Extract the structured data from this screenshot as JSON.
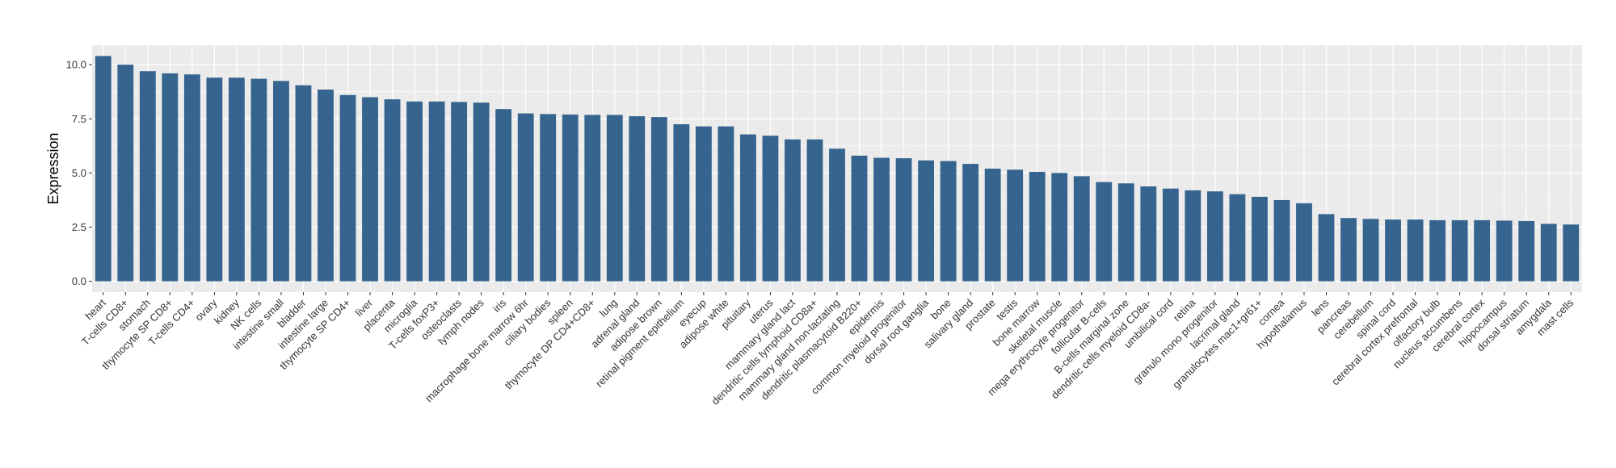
{
  "chart_data": {
    "type": "bar",
    "title": "",
    "xlabel": "",
    "ylabel": "Expression",
    "ylim": [
      -0.5,
      10.9
    ],
    "yticks": [
      0.0,
      2.5,
      5.0,
      7.5,
      10.0
    ],
    "ytick_labels": [
      "0.0",
      "2.5",
      "5.0",
      "7.5",
      "10.0"
    ],
    "grid": true,
    "legend": "none",
    "bar_color": "#35648e",
    "panel_color": "#ebebeb",
    "categories": [
      "heart",
      "T-cells CD8+",
      "stomach",
      "thymocyte SP CD8+",
      "T-cells CD4+",
      "ovary",
      "kidney",
      "NK cells",
      "intestine small",
      "bladder",
      "intestine large",
      "thymocyte SP CD4+",
      "liver",
      "placenta",
      "microglia",
      "T-cells foxP3+",
      "osteoclasts",
      "lymph nodes",
      "iris",
      "macrophage bone marrow 6hr",
      "ciliary bodies",
      "spleen",
      "thymocyte DP CD4+CD8+",
      "lung",
      "adrenal gland",
      "adipose brown",
      "retinal pigment epithelium",
      "eyecup",
      "adipose white",
      "pituitary",
      "uterus",
      "mammary gland lact",
      "dendritic cells lymphoid CD8a+",
      "mammary gland non-lactating",
      "dendritic plasmacytoid B220+",
      "epidermis",
      "common myeloid progenitor",
      "dorsal root ganglia",
      "bone",
      "salivary gland",
      "prostate",
      "testis",
      "bone marrow",
      "skeletal muscle",
      "mega erythrocyte progenitor",
      "follicular B-cells",
      "B-cells marginal zone",
      "dendritic cells myeloid CD8a-",
      "umbilical cord",
      "retina",
      "granulo mono progenitor",
      "lacrimal gland",
      "granulocytes mac1+gr61+",
      "cornea",
      "hypothalamus",
      "lens",
      "pancreas",
      "cerebellum",
      "spinal cord",
      "cerebral cortex prefrontal",
      "olfactory bulb",
      "nucleus accumbens",
      "cerebral cortex",
      "hippocampus",
      "dorsal striatum",
      "amygdala",
      "mast cells"
    ],
    "values": [
      10.4,
      10.0,
      9.7,
      9.6,
      9.55,
      9.4,
      9.4,
      9.35,
      9.25,
      9.05,
      8.85,
      8.6,
      8.5,
      8.4,
      8.3,
      8.3,
      8.28,
      8.25,
      7.95,
      7.75,
      7.72,
      7.7,
      7.68,
      7.68,
      7.62,
      7.58,
      7.25,
      7.15,
      7.15,
      6.78,
      6.72,
      6.55,
      6.55,
      6.12,
      5.8,
      5.7,
      5.68,
      5.58,
      5.55,
      5.42,
      5.2,
      5.15,
      5.05,
      5.0,
      4.85,
      4.58,
      4.52,
      4.38,
      4.28,
      4.2,
      4.15,
      4.02,
      3.9,
      3.75,
      3.6,
      3.1,
      2.92,
      2.88,
      2.85,
      2.85,
      2.82,
      2.82,
      2.82,
      2.8,
      2.78,
      2.65,
      2.62
    ]
  }
}
